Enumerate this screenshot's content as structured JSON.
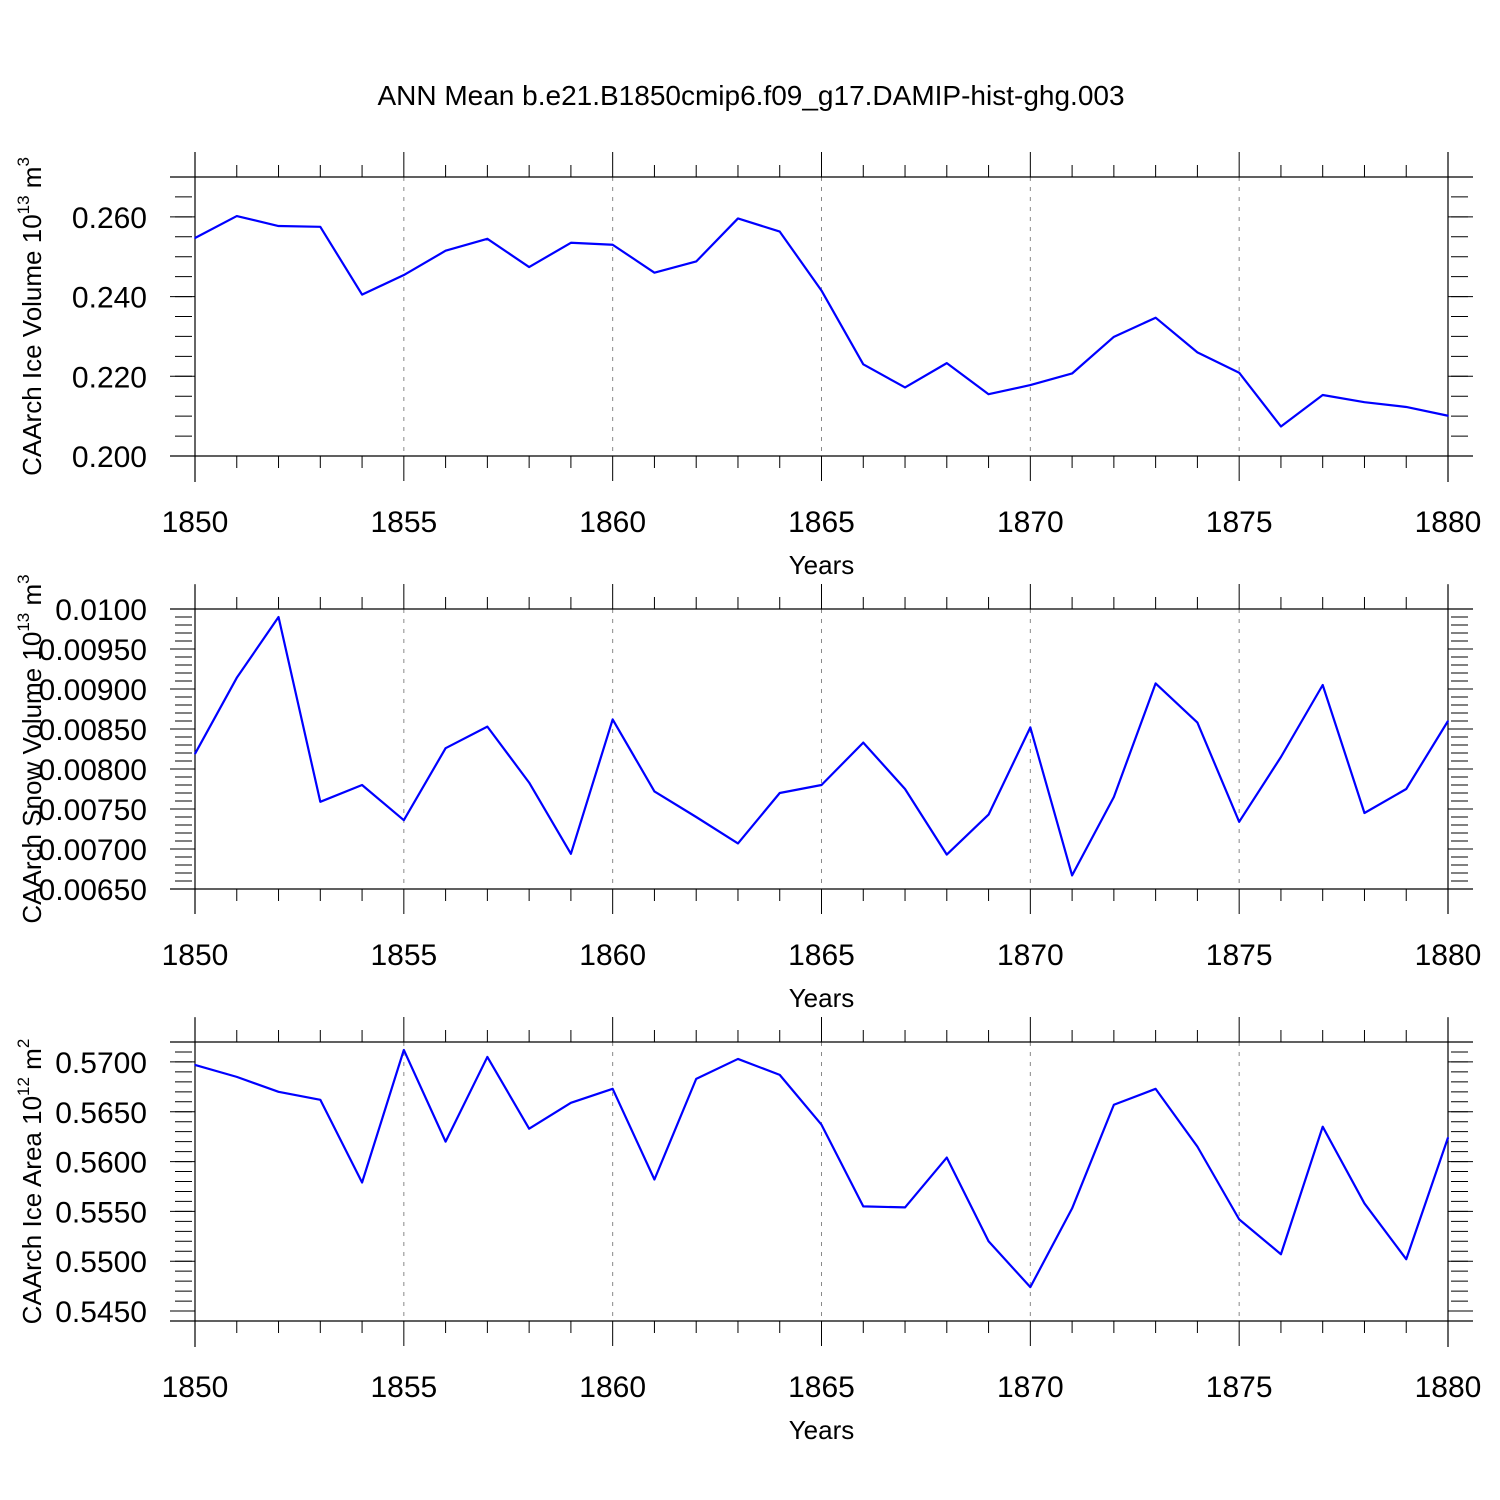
{
  "title": "ANN Mean b.e21.B1850cmip6.f09_g17.DAMIP-hist-ghg.003",
  "colors": {
    "line": "#0000ff",
    "axis": "#000000",
    "grid": "#888888"
  },
  "chart_data": [
    {
      "type": "line",
      "title": "ANN Mean b.e21.B1850cmip6.f09_g17.DAMIP-hist-ghg.003",
      "xlabel": "Years",
      "ylabel": "CAArch Ice Volume 10",
      "ylabel_exp": "13",
      "ylabel_unit": " m",
      "ylabel_unit_exp": "3",
      "xlim": [
        1850,
        1880
      ],
      "ylim": [
        0.2,
        0.27
      ],
      "xticks": [
        1850,
        1855,
        1860,
        1865,
        1870,
        1875,
        1880
      ],
      "xtick_labels": [
        "1850",
        "1855",
        "1860",
        "1865",
        "1870",
        "1875",
        "1880"
      ],
      "yticks": [
        0.2,
        0.22,
        0.24,
        0.26
      ],
      "ytick_labels": [
        "0.200",
        "0.220",
        "0.240",
        "0.260"
      ],
      "y_minor_step": 0.005,
      "grid": "x-dashed",
      "x": [
        1850,
        1851,
        1852,
        1853,
        1854,
        1855,
        1856,
        1857,
        1858,
        1859,
        1860,
        1861,
        1862,
        1863,
        1864,
        1865,
        1866,
        1867,
        1868,
        1869,
        1870,
        1871,
        1872,
        1873,
        1874,
        1875,
        1876,
        1877,
        1878,
        1879,
        1880
      ],
      "series": [
        {
          "name": "CAArch Ice Volume",
          "values": [
            0.2547,
            0.2602,
            0.2577,
            0.2575,
            0.2405,
            0.2454,
            0.2515,
            0.2545,
            0.2474,
            0.2535,
            0.253,
            0.246,
            0.2488,
            0.2596,
            0.2563,
            0.2415,
            0.223,
            0.2172,
            0.2233,
            0.2155,
            0.2178,
            0.2207,
            0.2299,
            0.2347,
            0.226,
            0.2209,
            0.2074,
            0.2153,
            0.2135,
            0.2123,
            0.2101
          ]
        }
      ]
    },
    {
      "type": "line",
      "xlabel": "Years",
      "ylabel": "CAArch Snow Volume 10",
      "ylabel_exp": "13",
      "ylabel_unit": " m",
      "ylabel_unit_exp": "3",
      "xlim": [
        1850,
        1880
      ],
      "ylim": [
        0.0065,
        0.01
      ],
      "xticks": [
        1850,
        1855,
        1860,
        1865,
        1870,
        1875,
        1880
      ],
      "xtick_labels": [
        "1850",
        "1855",
        "1860",
        "1865",
        "1870",
        "1875",
        "1880"
      ],
      "yticks": [
        0.0065,
        0.007,
        0.0075,
        0.008,
        0.0085,
        0.009,
        0.0095,
        0.01
      ],
      "ytick_labels": [
        "0.00650",
        "0.00700",
        "0.00750",
        "0.00800",
        "0.00850",
        "0.00900",
        "0.00950",
        "0.0100"
      ],
      "y_minor_step": 0.0001,
      "grid": "x-dashed",
      "x": [
        1850,
        1851,
        1852,
        1853,
        1854,
        1855,
        1856,
        1857,
        1858,
        1859,
        1860,
        1861,
        1862,
        1863,
        1864,
        1865,
        1866,
        1867,
        1868,
        1869,
        1870,
        1871,
        1872,
        1873,
        1874,
        1875,
        1876,
        1877,
        1878,
        1879,
        1880
      ],
      "series": [
        {
          "name": "CAArch Snow Volume",
          "values": [
            0.00819,
            0.00914,
            0.0099,
            0.00759,
            0.0078,
            0.00736,
            0.00826,
            0.00853,
            0.00783,
            0.00694,
            0.00862,
            0.00772,
            0.0074,
            0.00707,
            0.0077,
            0.0078,
            0.00833,
            0.00775,
            0.00693,
            0.00743,
            0.00852,
            0.00667,
            0.00765,
            0.00907,
            0.00858,
            0.00734,
            0.00815,
            0.00905,
            0.00745,
            0.00775,
            0.0086
          ]
        }
      ]
    },
    {
      "type": "line",
      "xlabel": "Years",
      "ylabel": "CAArch Ice Area 10",
      "ylabel_exp": "12",
      "ylabel_unit": " m",
      "ylabel_unit_exp": "2",
      "xlim": [
        1850,
        1880
      ],
      "ylim": [
        0.544,
        0.572
      ],
      "xticks": [
        1850,
        1855,
        1860,
        1865,
        1870,
        1875,
        1880
      ],
      "xtick_labels": [
        "1850",
        "1855",
        "1860",
        "1865",
        "1870",
        "1875",
        "1880"
      ],
      "yticks": [
        0.545,
        0.55,
        0.555,
        0.56,
        0.565,
        0.57
      ],
      "ytick_labels": [
        "0.5450",
        "0.5500",
        "0.5550",
        "0.5600",
        "0.5650",
        "0.5700"
      ],
      "y_minor_step": 0.001,
      "grid": "x-dashed",
      "x": [
        1850,
        1851,
        1852,
        1853,
        1854,
        1855,
        1856,
        1857,
        1858,
        1859,
        1860,
        1861,
        1862,
        1863,
        1864,
        1865,
        1866,
        1867,
        1868,
        1869,
        1870,
        1871,
        1872,
        1873,
        1874,
        1875,
        1876,
        1877,
        1878,
        1879,
        1880
      ],
      "series": [
        {
          "name": "CAArch Ice Area",
          "values": [
            0.5697,
            0.5685,
            0.567,
            0.5662,
            0.5579,
            0.5712,
            0.562,
            0.5705,
            0.5633,
            0.5659,
            0.5673,
            0.5582,
            0.5683,
            0.5703,
            0.5687,
            0.5637,
            0.5555,
            0.5554,
            0.5604,
            0.552,
            0.5474,
            0.5553,
            0.5657,
            0.5673,
            0.5615,
            0.5542,
            0.5507,
            0.5635,
            0.5558,
            0.5502,
            0.5624
          ]
        }
      ]
    }
  ]
}
